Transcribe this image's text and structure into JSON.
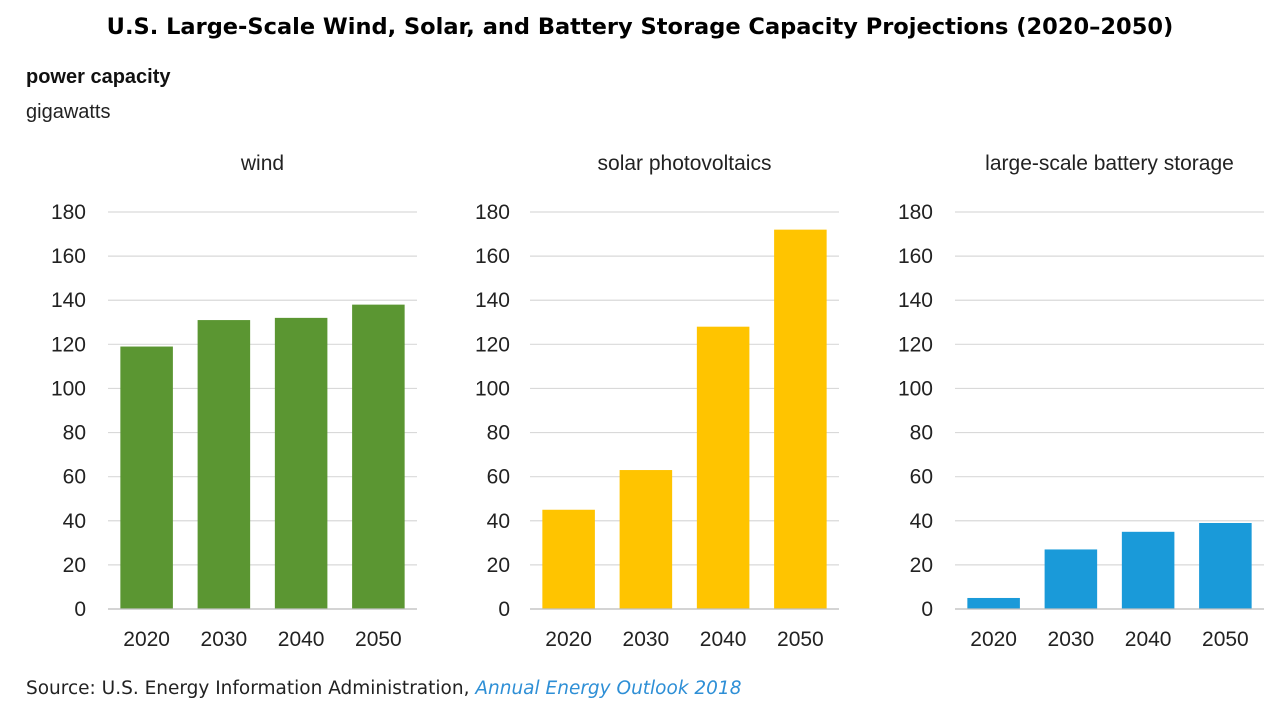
{
  "page": {
    "title": "U.S. Large-Scale Wind, Solar, and Battery Storage Capacity Projections (2020–2050)",
    "measure_label": "power capacity",
    "unit_label": "gigawatts",
    "source_prefix": "Source: U.S. Energy Information Administration, ",
    "source_publication": "Annual Energy Outlook 2018"
  },
  "chart_data": [
    {
      "type": "bar",
      "title": "wind",
      "categories": [
        "2020",
        "2030",
        "2040",
        "2050"
      ],
      "values": [
        119,
        131,
        132,
        138
      ],
      "ylim": [
        0,
        180
      ],
      "yticks": [
        0,
        20,
        40,
        60,
        80,
        100,
        120,
        140,
        160,
        180
      ],
      "grid": true,
      "color": "#5b9632"
    },
    {
      "type": "bar",
      "title": "solar photovoltaics",
      "categories": [
        "2020",
        "2030",
        "2040",
        "2050"
      ],
      "values": [
        45,
        63,
        128,
        172
      ],
      "ylim": [
        0,
        180
      ],
      "yticks": [
        0,
        20,
        40,
        60,
        80,
        100,
        120,
        140,
        160,
        180
      ],
      "grid": true,
      "color": "#ffc400"
    },
    {
      "type": "bar",
      "title": "large-scale battery storage",
      "categories": [
        "2020",
        "2030",
        "2040",
        "2050"
      ],
      "values": [
        5,
        27,
        35,
        39
      ],
      "ylim": [
        0,
        180
      ],
      "yticks": [
        0,
        20,
        40,
        60,
        80,
        100,
        120,
        140,
        160,
        180
      ],
      "grid": true,
      "color": "#1a9ad9"
    }
  ]
}
